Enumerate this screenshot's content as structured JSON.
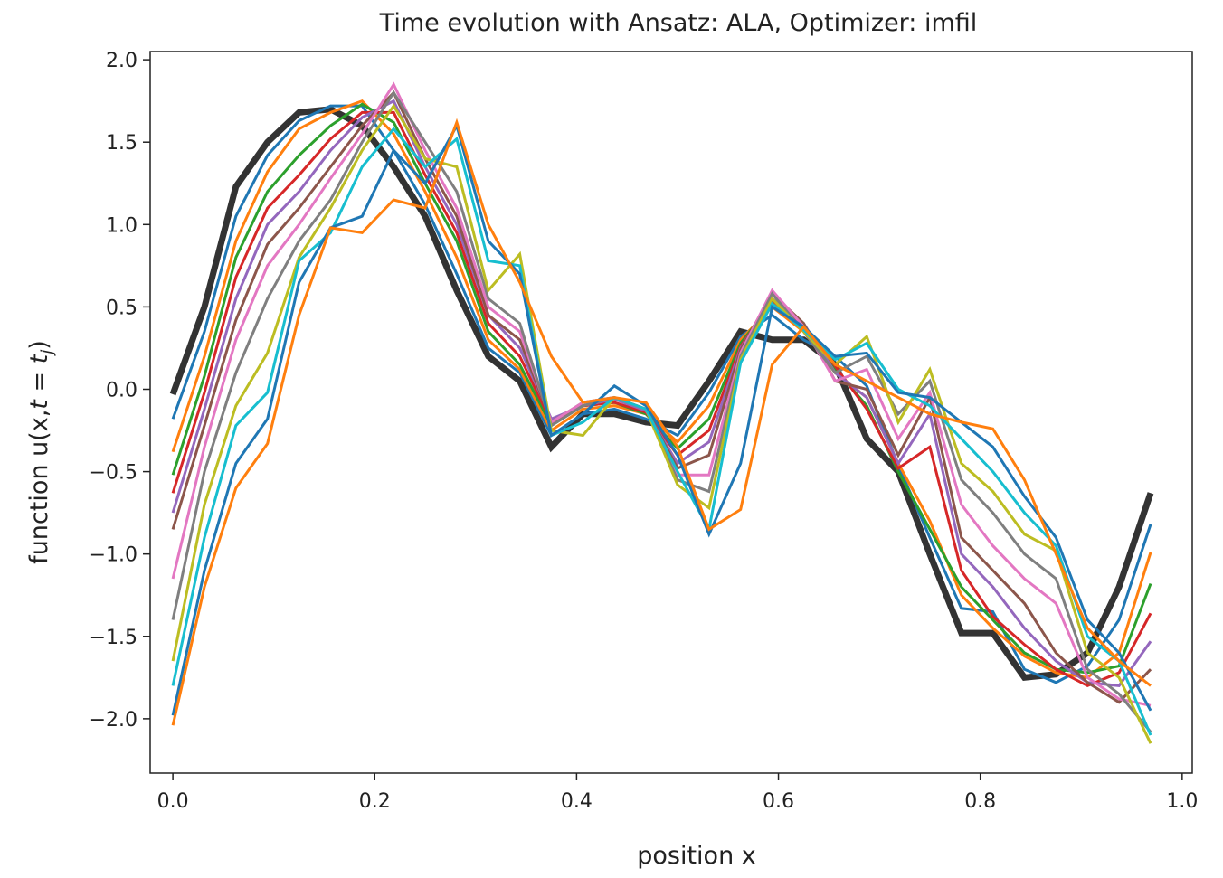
{
  "chart_data": {
    "type": "line",
    "title": "Time evolution with Ansatz: ALA, Optimizer: imfil",
    "xlabel": "position x",
    "ylabel_main": "function u(x,",
    "ylabel_math": "t = t",
    "ylabel_sub": "j",
    "ylabel_end": ")",
    "xlim": [
      -0.0225,
      1.01
    ],
    "ylim": [
      -2.33,
      2.05
    ],
    "x_ticks": [
      0.0,
      0.2,
      0.4,
      0.6,
      0.8,
      1.0
    ],
    "x_tick_labels": [
      "0.0",
      "0.2",
      "0.4",
      "0.6",
      "0.8",
      "1.0"
    ],
    "y_ticks": [
      2.0,
      1.5,
      1.0,
      0.5,
      0.0,
      -0.5,
      -1.0,
      -1.5,
      -2.0
    ],
    "y_tick_labels": [
      "2.0",
      "1.5",
      "1.0",
      "0.5",
      "0.0",
      "−0.5",
      "−1.0",
      "−1.5",
      "−2.0"
    ],
    "grid": false,
    "x": [
      0.0,
      0.03125,
      0.0625,
      0.09375,
      0.125,
      0.15625,
      0.1875,
      0.21875,
      0.25,
      0.28125,
      0.3125,
      0.34375,
      0.375,
      0.40625,
      0.4375,
      0.46875,
      0.5,
      0.53125,
      0.5625,
      0.59375,
      0.625,
      0.65625,
      0.6875,
      0.71875,
      0.75,
      0.78125,
      0.8125,
      0.84375,
      0.875,
      0.90625,
      0.9375,
      0.96875
    ],
    "series": [
      {
        "color": "#333333",
        "width": 7,
        "values": [
          -0.03,
          0.5,
          1.23,
          1.5,
          1.68,
          1.7,
          1.6,
          1.35,
          1.05,
          0.6,
          0.2,
          0.05,
          -0.35,
          -0.15,
          -0.15,
          -0.2,
          -0.22,
          0.05,
          0.35,
          0.3,
          0.3,
          0.15,
          -0.3,
          -0.5,
          -1.0,
          -1.48,
          -1.48,
          -1.75,
          -1.73,
          -1.6,
          -1.2,
          -0.63
        ]
      },
      {
        "color": "#1f77b4",
        "width": 3,
        "values": [
          -0.18,
          0.35,
          1.05,
          1.42,
          1.63,
          1.72,
          1.72,
          1.45,
          1.12,
          0.7,
          0.25,
          0.1,
          -0.28,
          -0.15,
          -0.12,
          -0.18,
          -0.28,
          -0.02,
          0.32,
          0.45,
          0.3,
          0.2,
          0.02,
          -0.46,
          -0.9,
          -1.33,
          -1.35,
          -1.7,
          -1.78,
          -1.68,
          -1.4,
          -0.82
        ]
      },
      {
        "color": "#ff7f0e",
        "width": 3,
        "values": [
          -0.38,
          0.2,
          0.9,
          1.32,
          1.58,
          1.68,
          1.75,
          1.55,
          1.2,
          0.8,
          0.3,
          0.12,
          -0.25,
          -0.12,
          -0.1,
          -0.15,
          -0.32,
          -0.1,
          0.3,
          0.5,
          0.35,
          0.1,
          -0.05,
          -0.45,
          -0.8,
          -1.25,
          -1.45,
          -1.62,
          -1.72,
          -1.75,
          -1.6,
          -0.99
        ]
      },
      {
        "color": "#2ca02c",
        "width": 3,
        "values": [
          -0.52,
          0.08,
          0.8,
          1.2,
          1.42,
          1.6,
          1.73,
          1.62,
          1.25,
          0.9,
          0.35,
          0.15,
          -0.22,
          -0.1,
          -0.08,
          -0.15,
          -0.36,
          -0.18,
          0.28,
          0.52,
          0.38,
          0.12,
          -0.1,
          -0.5,
          -0.85,
          -1.2,
          -1.4,
          -1.6,
          -1.7,
          -1.72,
          -1.68,
          -1.18
        ]
      },
      {
        "color": "#d62728",
        "width": 3,
        "values": [
          -0.63,
          -0.02,
          0.68,
          1.1,
          1.3,
          1.52,
          1.68,
          1.68,
          1.3,
          0.95,
          0.4,
          0.2,
          -0.2,
          -0.1,
          -0.08,
          -0.14,
          -0.4,
          -0.25,
          0.26,
          0.54,
          0.38,
          0.14,
          -0.12,
          -0.48,
          -0.35,
          -1.1,
          -1.38,
          -1.55,
          -1.7,
          -1.8,
          -1.72,
          -1.36
        ]
      },
      {
        "color": "#9467bd",
        "width": 3,
        "values": [
          -0.75,
          -0.12,
          0.55,
          1.0,
          1.2,
          1.45,
          1.65,
          1.75,
          1.35,
          1.0,
          0.45,
          0.25,
          -0.18,
          -0.1,
          -0.06,
          -0.13,
          -0.45,
          -0.32,
          0.25,
          0.55,
          0.4,
          0.1,
          -0.05,
          -0.45,
          -0.15,
          -1.0,
          -1.2,
          -1.45,
          -1.65,
          -1.78,
          -1.8,
          -1.53
        ]
      },
      {
        "color": "#8c564b",
        "width": 3,
        "values": [
          -0.85,
          -0.22,
          0.42,
          0.88,
          1.1,
          1.35,
          1.6,
          1.8,
          1.4,
          1.05,
          0.45,
          0.3,
          -0.2,
          -0.08,
          -0.05,
          -0.12,
          -0.48,
          -0.4,
          0.24,
          0.58,
          0.4,
          0.05,
          0.0,
          -0.4,
          -0.05,
          -0.9,
          -1.1,
          -1.3,
          -1.6,
          -1.78,
          -1.9,
          -1.7
        ]
      },
      {
        "color": "#e377c2",
        "width": 3,
        "values": [
          -1.15,
          -0.35,
          0.3,
          0.75,
          1.0,
          1.28,
          1.55,
          1.85,
          1.45,
          1.1,
          0.5,
          0.35,
          -0.2,
          -0.08,
          -0.05,
          -0.12,
          -0.52,
          -0.52,
          0.22,
          0.6,
          0.38,
          0.05,
          0.12,
          -0.3,
          -0.02,
          -0.7,
          -0.95,
          -1.15,
          -1.3,
          -1.75,
          -1.88,
          -1.92
        ]
      },
      {
        "color": "#7f7f7f",
        "width": 3,
        "values": [
          -1.4,
          -0.5,
          0.1,
          0.55,
          0.9,
          1.15,
          1.5,
          1.8,
          1.5,
          1.2,
          0.55,
          0.4,
          -0.22,
          -0.1,
          -0.05,
          -0.12,
          -0.55,
          -0.62,
          0.2,
          0.58,
          0.35,
          0.1,
          0.2,
          -0.15,
          0.05,
          -0.55,
          -0.75,
          -1.0,
          -1.15,
          -1.7,
          -1.85,
          -2.08
        ]
      },
      {
        "color": "#bcbd22",
        "width": 3,
        "values": [
          -1.65,
          -0.7,
          -0.1,
          0.22,
          0.8,
          1.1,
          1.45,
          1.72,
          1.4,
          1.35,
          0.6,
          0.82,
          -0.25,
          -0.28,
          -0.05,
          -0.12,
          -0.58,
          -0.72,
          0.18,
          0.55,
          0.35,
          0.15,
          0.32,
          -0.2,
          0.12,
          -0.45,
          -0.62,
          -0.88,
          -0.98,
          -1.6,
          -1.75,
          -2.15
        ]
      },
      {
        "color": "#17becf",
        "width": 3,
        "values": [
          -1.8,
          -0.9,
          -0.22,
          -0.02,
          0.78,
          0.95,
          1.35,
          1.58,
          1.35,
          1.52,
          0.78,
          0.75,
          -0.28,
          -0.2,
          -0.05,
          -0.12,
          -0.5,
          -0.85,
          0.16,
          0.52,
          0.36,
          0.18,
          0.28,
          0.0,
          -0.1,
          -0.3,
          -0.5,
          -0.75,
          -0.95,
          -1.5,
          -1.65,
          -2.1
        ]
      },
      {
        "color": "#1f77b4",
        "width": 3,
        "values": [
          -1.98,
          -1.1,
          -0.45,
          -0.18,
          0.65,
          0.98,
          1.05,
          1.45,
          1.25,
          1.6,
          0.9,
          0.7,
          -0.28,
          -0.15,
          0.02,
          -0.1,
          -0.4,
          -0.88,
          -0.45,
          0.5,
          0.38,
          0.2,
          0.22,
          -0.02,
          -0.05,
          -0.2,
          -0.35,
          -0.65,
          -0.9,
          -1.4,
          -1.6,
          -1.95
        ]
      },
      {
        "color": "#ff7f0e",
        "width": 3,
        "values": [
          -2.04,
          -1.2,
          -0.6,
          -0.33,
          0.45,
          0.98,
          0.95,
          1.15,
          1.1,
          1.62,
          1.0,
          0.65,
          0.2,
          -0.08,
          -0.05,
          -0.08,
          -0.35,
          -0.85,
          -0.73,
          0.15,
          0.38,
          0.15,
          0.05,
          -0.05,
          -0.15,
          -0.2,
          -0.24,
          -0.55,
          -1.0,
          -1.45,
          -1.65,
          -1.8
        ]
      }
    ]
  }
}
